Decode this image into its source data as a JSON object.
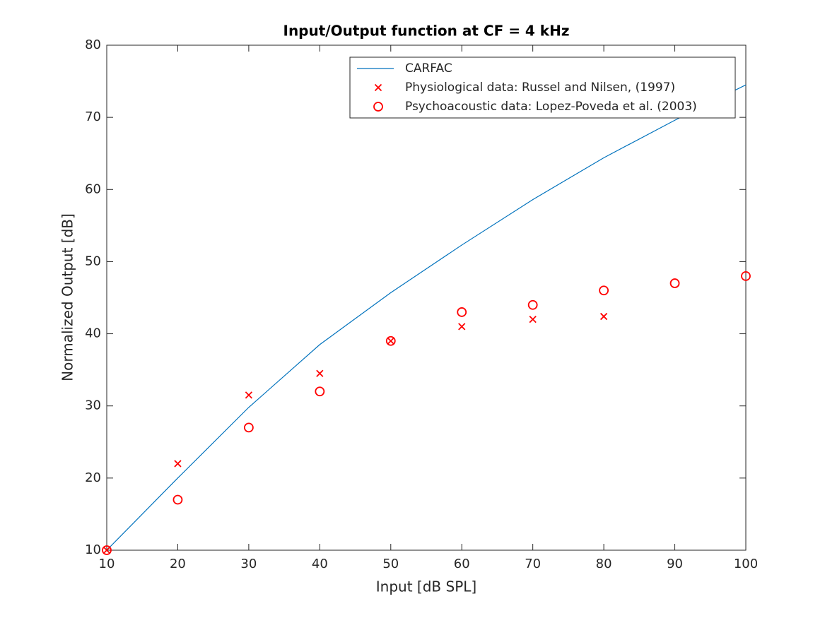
{
  "chart_data": {
    "type": "line",
    "title": "Input/Output function at CF = 4 kHz",
    "xlabel": "Input [dB SPL]",
    "ylabel": "Normalized Output [dB]",
    "xlim": [
      10,
      100
    ],
    "xticks": [
      10,
      20,
      30,
      40,
      50,
      60,
      70,
      80,
      90,
      100
    ],
    "ylim": [
      10,
      80
    ],
    "yticks": [
      10,
      20,
      30,
      40,
      50,
      60,
      70,
      80
    ],
    "legend": "top-right",
    "series": [
      {
        "name": "CARFAC",
        "color": "#0072bd",
        "marker": "none",
        "x": [
          10,
          20,
          30,
          40,
          50,
          60,
          70,
          80,
          90,
          100
        ],
        "values": [
          10,
          20,
          29.8,
          38.5,
          45.7,
          52.3,
          58.6,
          64.4,
          69.6,
          74.5
        ]
      },
      {
        "name": "Physiological data: Russel and Nilsen, (1997)",
        "color": "#ff0000",
        "marker": "x",
        "x": [
          10,
          20,
          30,
          40,
          50,
          60,
          70,
          80
        ],
        "values": [
          10,
          22,
          31.5,
          34.5,
          39,
          41,
          42,
          42.4
        ]
      },
      {
        "name": "Psychoacoustic data: Lopez-Poveda et al. (2003)",
        "color": "#ff0000",
        "marker": "o",
        "x": [
          10,
          20,
          30,
          40,
          50,
          60,
          70,
          80,
          90,
          100
        ],
        "values": [
          10,
          17,
          27,
          32,
          39,
          43,
          44,
          46,
          47,
          48
        ]
      }
    ]
  }
}
